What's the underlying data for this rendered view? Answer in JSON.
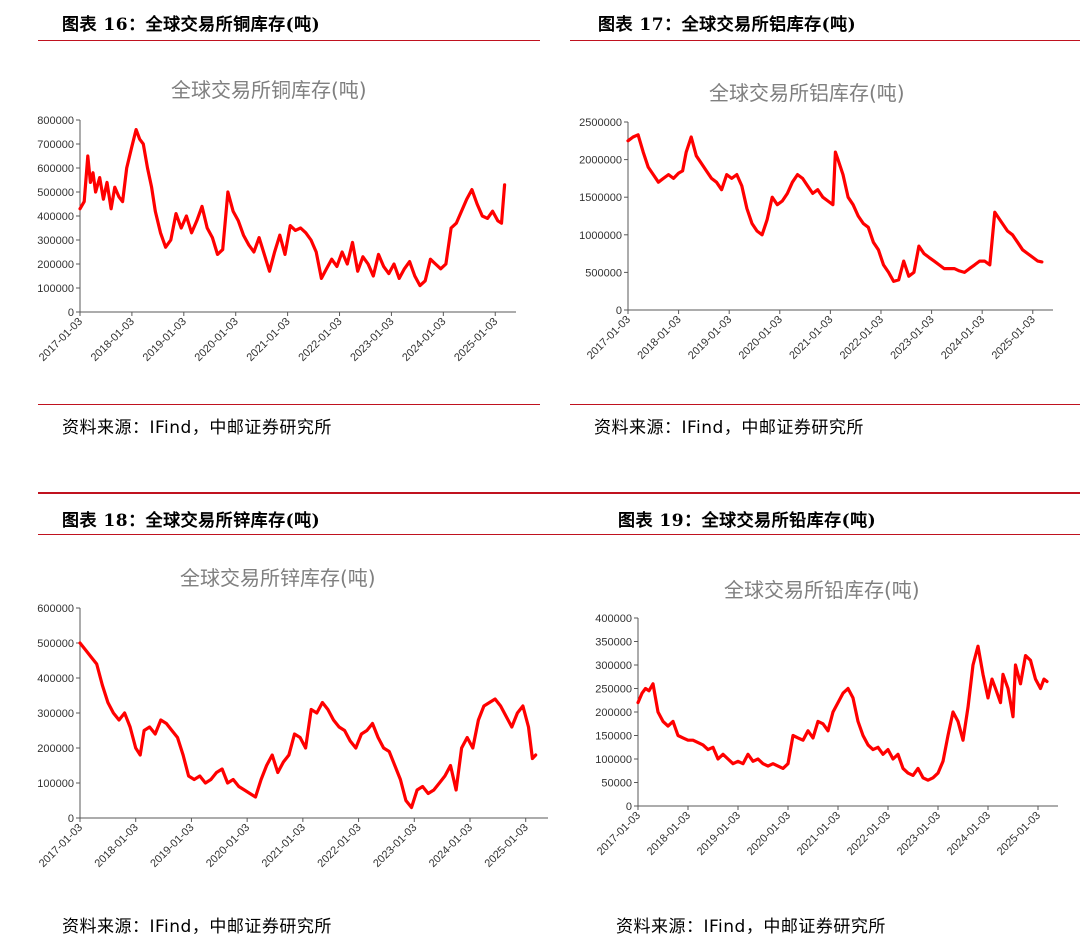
{
  "panels": [
    {
      "figure_label": "图表 16：全球交易所铜库存(吨)",
      "source": "资料来源：IFind，中邮证券研究所",
      "chart_data": {
        "type": "line",
        "title": "全球交易所铜库存(吨)",
        "xlabel": "",
        "ylabel": "",
        "ylim": [
          0,
          800000
        ],
        "yticks": [
          "800000",
          "700000",
          "600000",
          "500000",
          "400000",
          "300000",
          "200000",
          "100000",
          "0"
        ],
        "yvalues": [
          800000,
          700000,
          600000,
          500000,
          400000,
          300000,
          200000,
          100000,
          0
        ],
        "xticks": [
          "2017-01-03",
          "2018-01-03",
          "2019-01-03",
          "2020-01-03",
          "2021-01-03",
          "2022-01-03",
          "2023-01-03",
          "2024-01-03",
          "2025-01-03"
        ],
        "xlim": [
          2017.0,
          2025.4
        ],
        "grid": false,
        "series_color": "#ff0000",
        "series": [
          {
            "name": "",
            "x": [
              2017.0,
              2017.08,
              2017.15,
              2017.2,
              2017.25,
              2017.3,
              2017.38,
              2017.45,
              2017.52,
              2017.6,
              2017.67,
              2017.75,
              2017.82,
              2017.9,
              2018.0,
              2018.08,
              2018.15,
              2018.22,
              2018.3,
              2018.38,
              2018.45,
              2018.55,
              2018.65,
              2018.75,
              2018.85,
              2018.95,
              2019.05,
              2019.15,
              2019.25,
              2019.35,
              2019.45,
              2019.55,
              2019.65,
              2019.75,
              2019.85,
              2019.95,
              2020.05,
              2020.15,
              2020.25,
              2020.35,
              2020.45,
              2020.55,
              2020.65,
              2020.75,
              2020.85,
              2020.95,
              2021.05,
              2021.15,
              2021.25,
              2021.35,
              2021.45,
              2021.55,
              2021.65,
              2021.75,
              2021.85,
              2021.95,
              2022.05,
              2022.15,
              2022.25,
              2022.35,
              2022.45,
              2022.55,
              2022.65,
              2022.75,
              2022.85,
              2022.95,
              2023.05,
              2023.15,
              2023.25,
              2023.35,
              2023.45,
              2023.55,
              2023.65,
              2023.75,
              2023.85,
              2023.95,
              2024.05,
              2024.15,
              2024.25,
              2024.35,
              2024.45,
              2024.55,
              2024.65,
              2024.75,
              2024.85,
              2024.95,
              2025.05,
              2025.12,
              2025.18
            ],
            "values": [
              430000,
              460000,
              650000,
              540000,
              580000,
              500000,
              560000,
              470000,
              540000,
              430000,
              520000,
              480000,
              460000,
              600000,
              690000,
              760000,
              720000,
              700000,
              600000,
              520000,
              420000,
              330000,
              270000,
              300000,
              410000,
              350000,
              400000,
              330000,
              380000,
              440000,
              350000,
              310000,
              240000,
              260000,
              500000,
              420000,
              380000,
              320000,
              280000,
              250000,
              310000,
              240000,
              170000,
              250000,
              320000,
              240000,
              360000,
              340000,
              350000,
              330000,
              300000,
              250000,
              140000,
              180000,
              220000,
              190000,
              250000,
              200000,
              290000,
              170000,
              230000,
              200000,
              150000,
              240000,
              190000,
              160000,
              200000,
              140000,
              180000,
              210000,
              150000,
              110000,
              130000,
              220000,
              200000,
              180000,
              200000,
              350000,
              370000,
              420000,
              470000,
              510000,
              450000,
              400000,
              390000,
              420000,
              380000,
              370000,
              530000
            ]
          }
        ]
      }
    },
    {
      "figure_label": "图表 17：全球交易所铝库存(吨)",
      "source": "资料来源：IFind，中邮证券研究所",
      "chart_data": {
        "type": "line",
        "title": "全球交易所铝库存(吨)",
        "xlabel": "",
        "ylabel": "",
        "ylim": [
          0,
          2500000
        ],
        "yticks": [
          "2500000",
          "2000000",
          "1500000",
          "1000000",
          "500000",
          "0"
        ],
        "yvalues": [
          2500000,
          2000000,
          1500000,
          1000000,
          500000,
          0
        ],
        "xticks": [
          "2017-01-03",
          "2018-01-03",
          "2019-01-03",
          "2020-01-03",
          "2021-01-03",
          "2022-01-03",
          "2023-01-03",
          "2024-01-03",
          "2025-01-03"
        ],
        "xlim": [
          2017.0,
          2025.4
        ],
        "grid": false,
        "series_color": "#ff0000",
        "series": [
          {
            "name": "",
            "x": [
              2017.0,
              2017.1,
              2017.2,
              2017.3,
              2017.4,
              2017.5,
              2017.6,
              2017.7,
              2017.8,
              2017.9,
              2018.0,
              2018.08,
              2018.15,
              2018.25,
              2018.35,
              2018.45,
              2018.55,
              2018.65,
              2018.75,
              2018.85,
              2018.95,
              2019.05,
              2019.15,
              2019.25,
              2019.35,
              2019.45,
              2019.55,
              2019.65,
              2019.75,
              2019.85,
              2019.95,
              2020.05,
              2020.15,
              2020.25,
              2020.35,
              2020.45,
              2020.55,
              2020.65,
              2020.75,
              2020.85,
              2020.95,
              2021.05,
              2021.1,
              2021.15,
              2021.25,
              2021.35,
              2021.45,
              2021.55,
              2021.65,
              2021.75,
              2021.85,
              2021.95,
              2022.05,
              2022.15,
              2022.25,
              2022.35,
              2022.45,
              2022.55,
              2022.65,
              2022.75,
              2022.85,
              2022.95,
              2023.05,
              2023.15,
              2023.25,
              2023.35,
              2023.45,
              2023.55,
              2023.65,
              2023.75,
              2023.85,
              2023.95,
              2024.05,
              2024.15,
              2024.25,
              2024.3,
              2024.4,
              2024.5,
              2024.6,
              2024.7,
              2024.8,
              2024.9,
              2025.0,
              2025.1,
              2025.18
            ],
            "values": [
              2250000,
              2300000,
              2330000,
              2100000,
              1900000,
              1800000,
              1700000,
              1750000,
              1800000,
              1750000,
              1820000,
              1850000,
              2100000,
              2300000,
              2050000,
              1950000,
              1850000,
              1750000,
              1700000,
              1600000,
              1800000,
              1750000,
              1800000,
              1650000,
              1350000,
              1150000,
              1050000,
              1000000,
              1200000,
              1500000,
              1400000,
              1450000,
              1550000,
              1700000,
              1800000,
              1750000,
              1650000,
              1550000,
              1600000,
              1500000,
              1450000,
              1400000,
              2100000,
              2000000,
              1800000,
              1500000,
              1400000,
              1250000,
              1150000,
              1100000,
              900000,
              800000,
              600000,
              500000,
              380000,
              400000,
              650000,
              450000,
              500000,
              850000,
              750000,
              700000,
              650000,
              600000,
              550000,
              550000,
              550000,
              520000,
              500000,
              550000,
              600000,
              650000,
              650000,
              600000,
              1300000,
              1250000,
              1150000,
              1050000,
              1000000,
              900000,
              800000,
              750000,
              700000,
              650000,
              640000
            ]
          }
        ]
      }
    },
    {
      "figure_label": "图表 18：全球交易所锌库存(吨)",
      "source": "资料来源：IFind，中邮证券研究所",
      "chart_data": {
        "type": "line",
        "title": "全球交易所锌库存(吨)",
        "xlabel": "",
        "ylabel": "",
        "ylim": [
          0,
          600000
        ],
        "yticks": [
          "600000",
          "500000",
          "400000",
          "300000",
          "200000",
          "100000",
          "0"
        ],
        "yvalues": [
          600000,
          500000,
          400000,
          300000,
          200000,
          100000,
          0
        ],
        "xticks": [
          "2017-01-03",
          "2018-01-03",
          "2019-01-03",
          "2020-01-03",
          "2021-01-03",
          "2022-01-03",
          "2023-01-03",
          "2024-01-03",
          "2025-01-03"
        ],
        "xlim": [
          2017.0,
          2025.4
        ],
        "grid": false,
        "series_color": "#ff0000",
        "series": [
          {
            "name": "",
            "x": [
              2017.0,
              2017.1,
              2017.2,
              2017.3,
              2017.4,
              2017.5,
              2017.6,
              2017.7,
              2017.8,
              2017.9,
              2018.0,
              2018.08,
              2018.15,
              2018.25,
              2018.35,
              2018.45,
              2018.55,
              2018.65,
              2018.75,
              2018.85,
              2018.95,
              2019.05,
              2019.15,
              2019.25,
              2019.35,
              2019.45,
              2019.55,
              2019.65,
              2019.75,
              2019.85,
              2019.95,
              2020.05,
              2020.15,
              2020.25,
              2020.35,
              2020.45,
              2020.55,
              2020.65,
              2020.75,
              2020.85,
              2020.95,
              2021.05,
              2021.15,
              2021.25,
              2021.35,
              2021.45,
              2021.55,
              2021.65,
              2021.75,
              2021.85,
              2021.95,
              2022.05,
              2022.15,
              2022.25,
              2022.35,
              2022.45,
              2022.55,
              2022.65,
              2022.75,
              2022.85,
              2022.95,
              2023.05,
              2023.15,
              2023.25,
              2023.35,
              2023.45,
              2023.55,
              2023.65,
              2023.75,
              2023.85,
              2023.95,
              2024.05,
              2024.15,
              2024.25,
              2024.35,
              2024.45,
              2024.55,
              2024.65,
              2024.75,
              2024.85,
              2024.95,
              2025.05,
              2025.12,
              2025.18
            ],
            "values": [
              500000,
              480000,
              460000,
              440000,
              380000,
              330000,
              300000,
              280000,
              300000,
              260000,
              200000,
              180000,
              250000,
              260000,
              240000,
              280000,
              270000,
              250000,
              230000,
              180000,
              120000,
              110000,
              120000,
              100000,
              110000,
              130000,
              140000,
              100000,
              110000,
              90000,
              80000,
              70000,
              60000,
              110000,
              150000,
              180000,
              130000,
              160000,
              180000,
              240000,
              230000,
              200000,
              310000,
              300000,
              330000,
              310000,
              280000,
              260000,
              250000,
              220000,
              200000,
              240000,
              250000,
              270000,
              230000,
              200000,
              190000,
              150000,
              110000,
              50000,
              30000,
              80000,
              90000,
              70000,
              80000,
              100000,
              120000,
              150000,
              80000,
              200000,
              230000,
              200000,
              280000,
              320000,
              330000,
              340000,
              320000,
              290000,
              260000,
              300000,
              320000,
              260000,
              170000,
              180000
            ]
          }
        ]
      }
    },
    {
      "figure_label": "图表 19：全球交易所铅库存(吨)",
      "source": "资料来源：IFind，中邮证券研究所",
      "chart_data": {
        "type": "line",
        "title": "全球交易所铅库存(吨)",
        "xlabel": "",
        "ylabel": "",
        "ylim": [
          0,
          400000
        ],
        "yticks": [
          "400000",
          "350000",
          "300000",
          "250000",
          "200000",
          "150000",
          "100000",
          "50000",
          "0"
        ],
        "yvalues": [
          400000,
          350000,
          300000,
          250000,
          200000,
          150000,
          100000,
          50000,
          0
        ],
        "xticks": [
          "2017-01-03",
          "2018-01-03",
          "2019-01-03",
          "2020-01-03",
          "2021-01-03",
          "2022-01-03",
          "2023-01-03",
          "2024-01-03",
          "2025-01-03"
        ],
        "xlim": [
          2017.0,
          2025.4
        ],
        "grid": false,
        "series_color": "#ff0000",
        "series": [
          {
            "name": "",
            "x": [
              2017.0,
              2017.08,
              2017.15,
              2017.22,
              2017.3,
              2017.4,
              2017.5,
              2017.6,
              2017.7,
              2017.8,
              2017.9,
              2018.0,
              2018.1,
              2018.2,
              2018.3,
              2018.4,
              2018.5,
              2018.6,
              2018.7,
              2018.8,
              2018.9,
              2019.0,
              2019.1,
              2019.2,
              2019.3,
              2019.4,
              2019.5,
              2019.6,
              2019.7,
              2019.8,
              2019.9,
              2020.0,
              2020.1,
              2020.2,
              2020.3,
              2020.4,
              2020.5,
              2020.6,
              2020.7,
              2020.8,
              2020.9,
              2021.0,
              2021.1,
              2021.2,
              2021.3,
              2021.4,
              2021.5,
              2021.6,
              2021.7,
              2021.8,
              2021.9,
              2022.0,
              2022.1,
              2022.2,
              2022.3,
              2022.4,
              2022.5,
              2022.6,
              2022.7,
              2022.8,
              2022.9,
              2023.0,
              2023.1,
              2023.2,
              2023.3,
              2023.4,
              2023.5,
              2023.6,
              2023.7,
              2023.8,
              2023.9,
              2024.0,
              2024.08,
              2024.15,
              2024.25,
              2024.3,
              2024.4,
              2024.5,
              2024.55,
              2024.65,
              2024.75,
              2024.85,
              2024.95,
              2025.05,
              2025.12,
              2025.18
            ],
            "values": [
              220000,
              240000,
              250000,
              245000,
              260000,
              200000,
              180000,
              170000,
              180000,
              150000,
              145000,
              140000,
              140000,
              135000,
              130000,
              120000,
              125000,
              100000,
              110000,
              100000,
              90000,
              95000,
              90000,
              110000,
              95000,
              100000,
              90000,
              85000,
              90000,
              85000,
              80000,
              90000,
              150000,
              145000,
              140000,
              160000,
              145000,
              180000,
              175000,
              160000,
              200000,
              220000,
              240000,
              250000,
              230000,
              180000,
              150000,
              130000,
              120000,
              125000,
              110000,
              120000,
              100000,
              110000,
              80000,
              70000,
              65000,
              80000,
              60000,
              55000,
              60000,
              70000,
              95000,
              150000,
              200000,
              180000,
              140000,
              210000,
              300000,
              340000,
              280000,
              230000,
              270000,
              250000,
              220000,
              280000,
              250000,
              190000,
              300000,
              260000,
              320000,
              310000,
              270000,
              250000,
              270000,
              265000
            ]
          }
        ]
      }
    }
  ]
}
